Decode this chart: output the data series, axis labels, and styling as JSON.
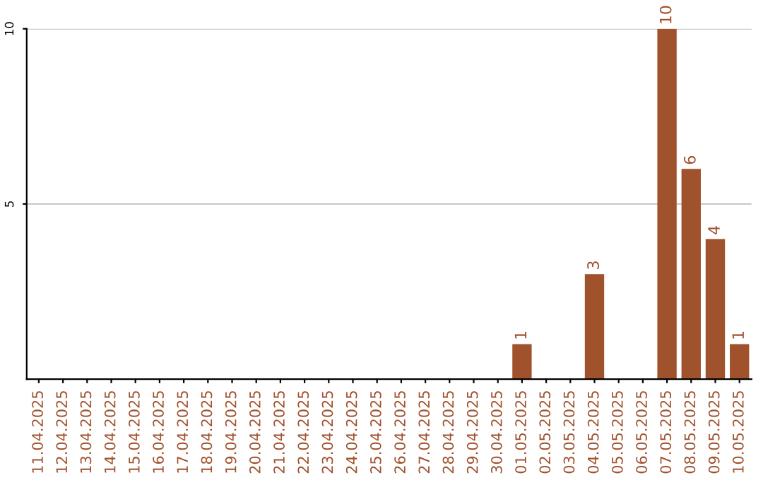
{
  "chart_data": {
    "type": "bar",
    "categories": [
      "11.04.2025",
      "12.04.2025",
      "13.04.2025",
      "14.04.2025",
      "15.04.2025",
      "16.04.2025",
      "17.04.2025",
      "18.04.2025",
      "19.04.2025",
      "20.04.2025",
      "21.04.2025",
      "22.04.2025",
      "23.04.2025",
      "24.04.2025",
      "25.04.2025",
      "26.04.2025",
      "27.04.2025",
      "28.04.2025",
      "29.04.2025",
      "30.04.2025",
      "01.05.2025",
      "02.05.2025",
      "03.05.2025",
      "04.05.2025",
      "05.05.2025",
      "06.05.2025",
      "07.05.2025",
      "08.05.2025",
      "09.05.2025",
      "10.05.2025"
    ],
    "values": [
      0,
      0,
      0,
      0,
      0,
      0,
      0,
      0,
      0,
      0,
      0,
      0,
      0,
      0,
      0,
      0,
      0,
      0,
      0,
      0,
      1,
      0,
      0,
      3,
      0,
      0,
      10,
      6,
      4,
      1
    ],
    "value_labels": [
      null,
      null,
      null,
      null,
      null,
      null,
      null,
      null,
      null,
      null,
      null,
      null,
      null,
      null,
      null,
      null,
      null,
      null,
      null,
      null,
      "1",
      null,
      null,
      "3",
      null,
      null,
      "10",
      "6",
      "4",
      "1"
    ],
    "color": "#a0522d",
    "ylim": [
      0,
      10
    ],
    "yticks": [
      5,
      10
    ],
    "grid": "y"
  }
}
